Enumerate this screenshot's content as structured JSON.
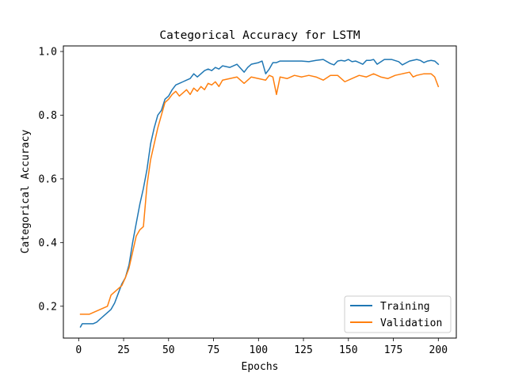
{
  "chart_data": {
    "type": "line",
    "title": "Categorical Accuracy for LSTM",
    "xlabel": "Epochs",
    "ylabel": "Categorical Accuracy",
    "xlim": [
      -8.5,
      210
    ],
    "ylim": [
      0.1,
      1.0175
    ],
    "x_ticks": [
      0,
      25,
      50,
      75,
      100,
      125,
      150,
      175,
      200
    ],
    "x_tick_labels": [
      "0",
      "25",
      "50",
      "75",
      "100",
      "125",
      "150",
      "175",
      "200"
    ],
    "y_ticks": [
      0.2,
      0.4,
      0.6,
      0.8,
      1.0
    ],
    "y_tick_labels": [
      "0.2",
      "0.4",
      "0.6",
      "0.8",
      "1.0"
    ],
    "grid": false,
    "legend_position": "bottom-right",
    "series": [
      {
        "name": "Training",
        "color": "#1f77b4",
        "x": [
          1,
          2,
          4,
          6,
          8,
          10,
          12,
          14,
          16,
          18,
          20,
          22,
          24,
          26,
          28,
          30,
          32,
          34,
          36,
          38,
          40,
          42,
          44,
          46,
          48,
          50,
          52,
          54,
          56,
          58,
          60,
          62,
          64,
          66,
          68,
          70,
          72,
          74,
          76,
          78,
          80,
          84,
          88,
          92,
          94,
          96,
          100,
          102,
          104,
          106,
          108,
          110,
          112,
          116,
          120,
          124,
          128,
          132,
          136,
          140,
          142,
          144,
          146,
          148,
          150,
          152,
          154,
          156,
          158,
          160,
          162,
          164,
          166,
          170,
          174,
          178,
          180,
          184,
          188,
          190,
          192,
          194,
          196,
          198,
          200
        ],
        "values": [
          0.135,
          0.145,
          0.145,
          0.145,
          0.145,
          0.15,
          0.16,
          0.17,
          0.18,
          0.19,
          0.21,
          0.24,
          0.27,
          0.29,
          0.33,
          0.4,
          0.46,
          0.52,
          0.57,
          0.63,
          0.71,
          0.76,
          0.8,
          0.815,
          0.85,
          0.86,
          0.88,
          0.895,
          0.9,
          0.905,
          0.91,
          0.915,
          0.93,
          0.92,
          0.93,
          0.94,
          0.945,
          0.94,
          0.95,
          0.945,
          0.955,
          0.95,
          0.96,
          0.935,
          0.95,
          0.96,
          0.965,
          0.97,
          0.93,
          0.945,
          0.965,
          0.965,
          0.97,
          0.97,
          0.97,
          0.97,
          0.968,
          0.972,
          0.975,
          0.962,
          0.958,
          0.97,
          0.972,
          0.97,
          0.975,
          0.968,
          0.97,
          0.965,
          0.96,
          0.972,
          0.972,
          0.975,
          0.96,
          0.975,
          0.975,
          0.968,
          0.958,
          0.97,
          0.975,
          0.972,
          0.965,
          0.97,
          0.972,
          0.97,
          0.96
        ]
      },
      {
        "name": "Validation",
        "color": "#ff7f0e",
        "x": [
          1,
          2,
          4,
          6,
          8,
          10,
          12,
          14,
          16,
          18,
          20,
          22,
          24,
          26,
          28,
          30,
          32,
          34,
          36,
          38,
          40,
          42,
          44,
          46,
          48,
          50,
          52,
          54,
          56,
          58,
          60,
          62,
          64,
          66,
          68,
          70,
          72,
          74,
          76,
          78,
          80,
          84,
          88,
          92,
          96,
          100,
          104,
          106,
          108,
          110,
          112,
          116,
          120,
          124,
          128,
          132,
          136,
          140,
          144,
          146,
          148,
          152,
          156,
          160,
          164,
          168,
          172,
          176,
          180,
          184,
          186,
          188,
          192,
          196,
          198,
          200
        ],
        "values": [
          0.175,
          0.175,
          0.175,
          0.175,
          0.18,
          0.185,
          0.19,
          0.195,
          0.2,
          0.235,
          0.245,
          0.255,
          0.265,
          0.29,
          0.32,
          0.37,
          0.42,
          0.44,
          0.45,
          0.58,
          0.66,
          0.71,
          0.76,
          0.8,
          0.84,
          0.85,
          0.865,
          0.875,
          0.86,
          0.87,
          0.88,
          0.865,
          0.885,
          0.875,
          0.89,
          0.88,
          0.9,
          0.895,
          0.905,
          0.89,
          0.91,
          0.915,
          0.92,
          0.9,
          0.92,
          0.915,
          0.91,
          0.925,
          0.92,
          0.865,
          0.92,
          0.915,
          0.925,
          0.92,
          0.925,
          0.92,
          0.91,
          0.925,
          0.925,
          0.915,
          0.905,
          0.915,
          0.925,
          0.92,
          0.93,
          0.92,
          0.915,
          0.925,
          0.93,
          0.935,
          0.92,
          0.925,
          0.93,
          0.93,
          0.92,
          0.89
        ]
      }
    ]
  }
}
